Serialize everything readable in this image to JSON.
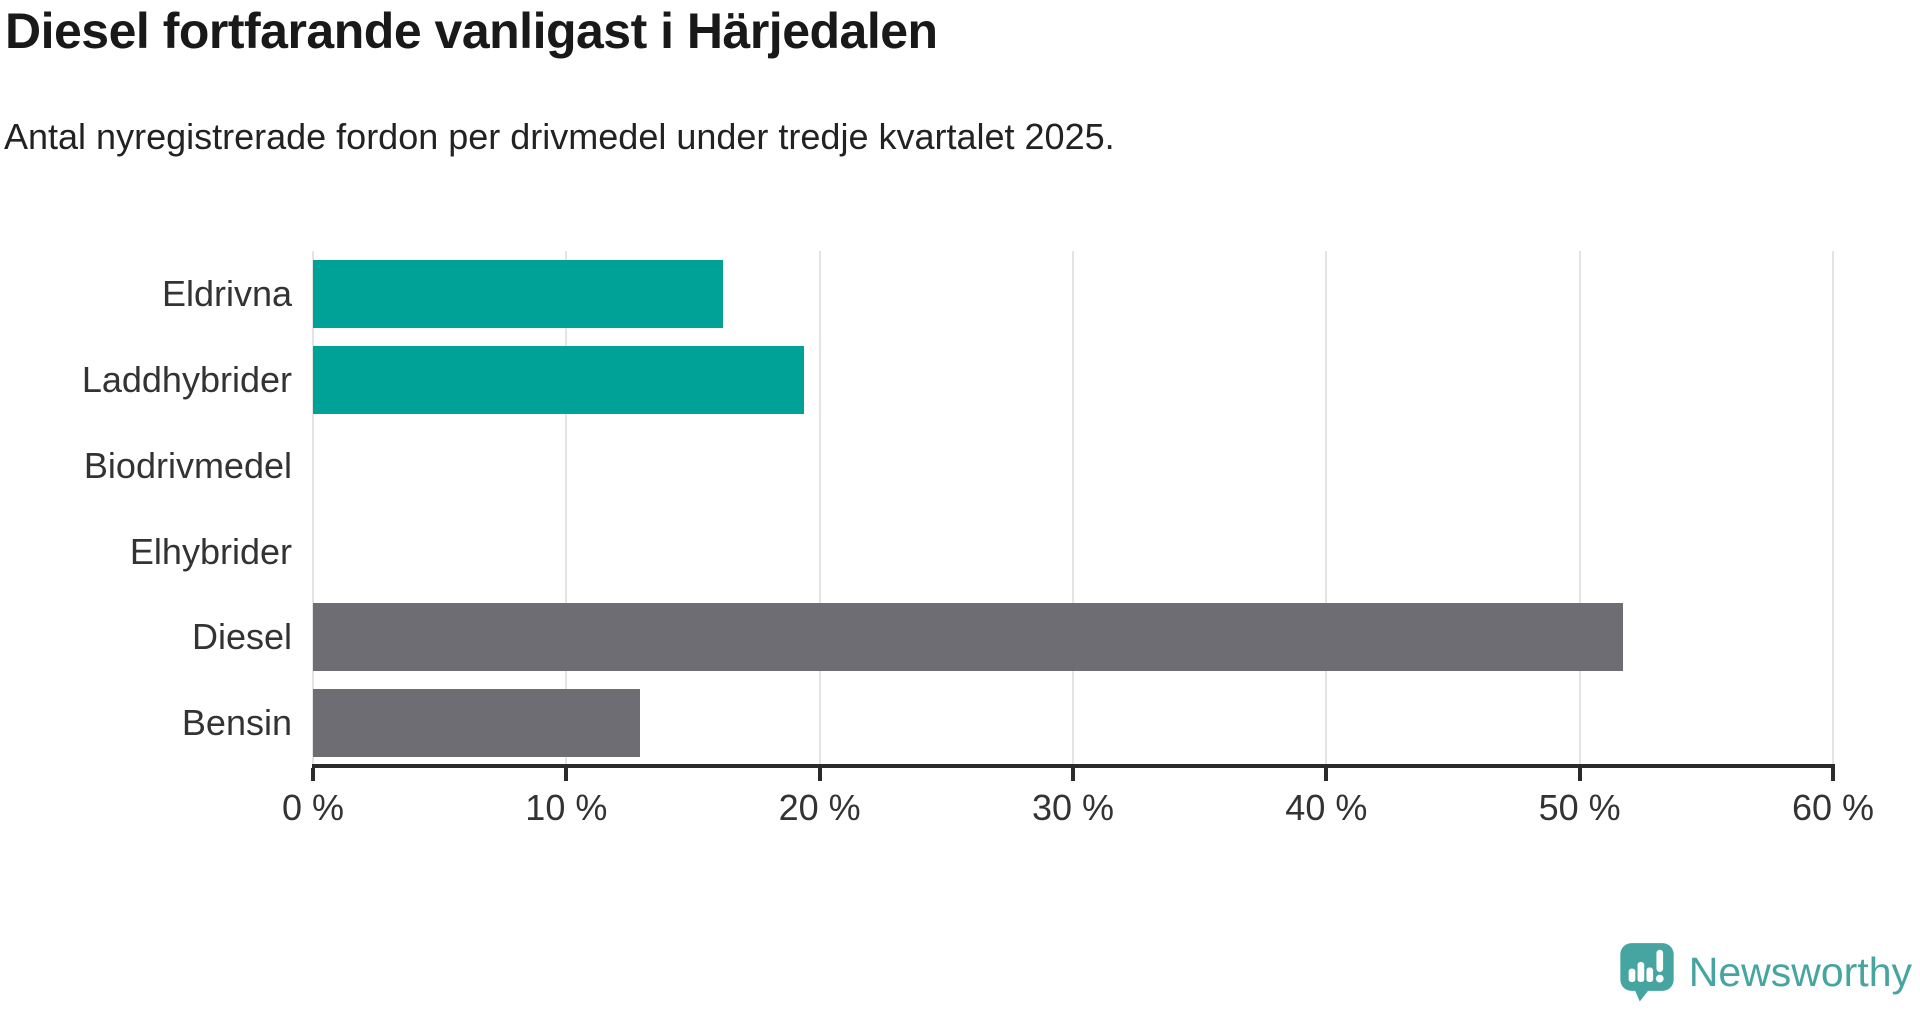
{
  "header": {
    "title": "Diesel fortfarande vanligast i Härjedalen",
    "subtitle": "Antal nyregistrerade fordon per drivmedel under tredje kvartalet 2025."
  },
  "chart_data": {
    "type": "bar",
    "orientation": "horizontal",
    "title": "Diesel fortfarande vanligast i Härjedalen",
    "subtitle": "Antal nyregistrerade fordon per drivmedel under tredje kvartalet 2025.",
    "categories": [
      "Eldrivna",
      "Laddhybrider",
      "Biodrivmedel",
      "Elhybrider",
      "Diesel",
      "Bensin"
    ],
    "values": [
      16.2,
      19.4,
      0,
      0,
      51.7,
      12.9
    ],
    "unit": "%",
    "bar_colors": [
      "#00a298",
      "#00a298",
      "#00a298",
      "#00a298",
      "#6d6d73",
      "#6d6d73"
    ],
    "xlim": [
      0,
      60
    ],
    "x_ticks": [
      0,
      10,
      20,
      30,
      40,
      50,
      60
    ],
    "x_tick_labels": [
      "0 %",
      "10 %",
      "20 %",
      "30 %",
      "40 %",
      "50 %",
      "60 %"
    ],
    "grid": "vertical-gridlines-under-bars",
    "legend": "none"
  },
  "branding": {
    "logo_text": "Newsworthy",
    "logo_color": "#46a5a0",
    "logo_icon": "speech-bubble-bar-chart-icon"
  },
  "colors": {
    "teal_bar": "#00a298",
    "gray_bar": "#6d6d73",
    "axis": "#2b2b2b",
    "gridline": "#e4e4e4",
    "title_text": "#191919",
    "label_text": "#333333"
  }
}
